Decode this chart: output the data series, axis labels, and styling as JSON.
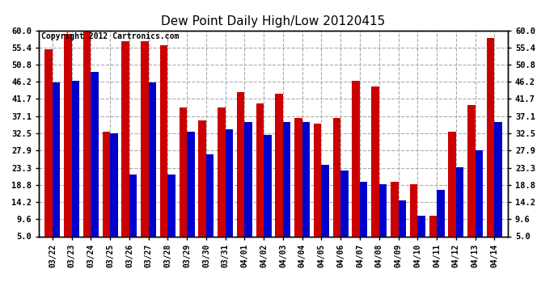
{
  "title": "Dew Point Daily High/Low 20120415",
  "copyright": "Copyright 2012 Cartronics.com",
  "categories": [
    "03/22",
    "03/23",
    "03/24",
    "03/25",
    "03/26",
    "03/27",
    "03/28",
    "03/29",
    "03/30",
    "03/31",
    "04/01",
    "04/02",
    "04/03",
    "04/04",
    "04/05",
    "04/06",
    "04/07",
    "04/08",
    "04/09",
    "04/10",
    "04/11",
    "04/12",
    "04/13",
    "04/14"
  ],
  "high_values": [
    55.0,
    59.0,
    61.0,
    33.0,
    57.0,
    57.0,
    56.0,
    39.5,
    36.0,
    39.5,
    43.5,
    40.5,
    43.0,
    36.5,
    35.0,
    36.5,
    46.5,
    45.0,
    19.5,
    19.0,
    10.5,
    33.0,
    40.0,
    58.0
  ],
  "low_values": [
    46.0,
    46.5,
    49.0,
    32.5,
    21.5,
    46.0,
    21.5,
    33.0,
    27.0,
    33.5,
    35.5,
    32.0,
    35.5,
    35.5,
    24.0,
    22.5,
    19.5,
    19.0,
    14.5,
    10.5,
    17.5,
    23.5,
    28.0,
    35.5
  ],
  "high_color": "#cc0000",
  "low_color": "#0000cc",
  "ylim": [
    5.0,
    60.0
  ],
  "yticks": [
    5.0,
    9.6,
    14.2,
    18.8,
    23.3,
    27.9,
    32.5,
    37.1,
    41.7,
    46.2,
    50.8,
    55.4,
    60.0
  ],
  "background_color": "#ffffff",
  "plot_bg_color": "#ffffff",
  "grid_color": "#aaaaaa",
  "title_fontsize": 11,
  "copyright_fontsize": 7,
  "bar_width": 0.4
}
